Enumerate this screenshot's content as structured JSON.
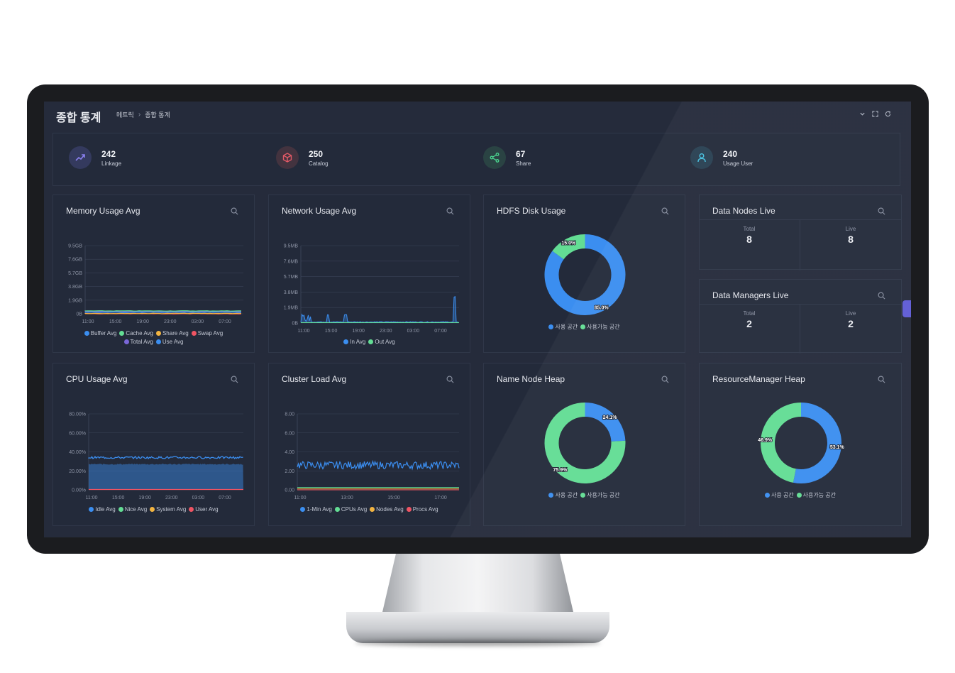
{
  "header": {
    "title": "종합 통계",
    "breadcrumb": [
      "메트릭",
      "종합 통계"
    ],
    "breadcrumb_sep": "›"
  },
  "stats": [
    {
      "value": "242",
      "label": "Linkage",
      "icon": "trend-up-icon",
      "color": "#6a62e8"
    },
    {
      "value": "250",
      "label": "Catalog",
      "icon": "cube-icon",
      "color": "#e0525f"
    },
    {
      "value": "67",
      "label": "Share",
      "icon": "share-icon",
      "color": "#3fcf86"
    },
    {
      "value": "240",
      "label": "Usage User",
      "icon": "user-icon",
      "color": "#39b8d8"
    }
  ],
  "panels": {
    "memory": {
      "title": "Memory Usage Avg"
    },
    "network": {
      "title": "Network Usage Avg"
    },
    "hdfs": {
      "title": "HDFS Disk Usage"
    },
    "data_nodes": {
      "title": "Data Nodes Live",
      "total_label": "Total",
      "total": "8",
      "live_label": "Live",
      "live": "8"
    },
    "data_managers": {
      "title": "Data Managers Live",
      "total_label": "Total",
      "total": "2",
      "live_label": "Live",
      "live": "2"
    },
    "cpu": {
      "title": "CPU Usage Avg"
    },
    "cluster": {
      "title": "Cluster Load Avg"
    },
    "namenode": {
      "title": "Name Node Heap"
    },
    "resourcemanager": {
      "title": "ResourceManager Heap"
    }
  },
  "colors": {
    "blue": "#3b8ef0",
    "green": "#63dd94",
    "orange": "#f2b441",
    "red": "#ef5463",
    "purple": "#7a67d8"
  },
  "chart_data": [
    {
      "id": "memory",
      "type": "line",
      "x": [
        "11:00",
        "15:00",
        "19:00",
        "23:00",
        "03:00",
        "07:00"
      ],
      "yticks": [
        "0B",
        "1.9GB",
        "3.8GB",
        "5.7GB",
        "7.6GB",
        "9.5GB"
      ],
      "ylim": [
        0,
        9.5
      ],
      "series": [
        {
          "name": "Buffer Avg",
          "color": "#3b8ef0",
          "level": 0.2
        },
        {
          "name": "Cache Avg",
          "color": "#63dd94",
          "level": 0.4
        },
        {
          "name": "Share Avg",
          "color": "#f2b441",
          "level": 0.05
        },
        {
          "name": "Swap Avg",
          "color": "#ef5463",
          "level": 0.0
        },
        {
          "name": "Total Avg",
          "color": "#7a67d8",
          "level": 0.3
        },
        {
          "name": "Use Avg",
          "color": "#3b8ef0",
          "level": 0.35
        }
      ]
    },
    {
      "id": "network",
      "type": "line",
      "x": [
        "11:00",
        "15:00",
        "19:00",
        "23:00",
        "03:00",
        "07:00"
      ],
      "yticks": [
        "0B",
        "1.9MB",
        "3.8MB",
        "5.7MB",
        "7.6MB",
        "9.5MB"
      ],
      "ylim": [
        0,
        9.5
      ],
      "series": [
        {
          "name": "In Avg",
          "color": "#3b8ef0"
        },
        {
          "name": "Out Avg",
          "color": "#63dd94"
        }
      ]
    },
    {
      "id": "hdfs",
      "type": "pie",
      "slices": [
        {
          "name": "사용 공간",
          "value": 85.0,
          "label": "85.0%",
          "color": "#3b8ef0"
        },
        {
          "name": "사용가능 공간",
          "value": 15.0,
          "label": "15.0%",
          "color": "#63dd94"
        }
      ]
    },
    {
      "id": "cpu",
      "type": "area",
      "x": [
        "11:00",
        "15:00",
        "19:00",
        "23:00",
        "03:00",
        "07:00"
      ],
      "yticks": [
        "0.00%",
        "20.00%",
        "40.00%",
        "60.00%",
        "80.00%"
      ],
      "ylim": [
        0,
        80
      ],
      "series": [
        {
          "name": "Idle Avg",
          "color": "#3b8ef0",
          "level": 34
        },
        {
          "name": "Nice Avg",
          "color": "#63dd94",
          "level": 0
        },
        {
          "name": "System Avg",
          "color": "#f2b441",
          "level": 0
        },
        {
          "name": "User Avg",
          "color": "#ef5463",
          "level": 0.5
        }
      ]
    },
    {
      "id": "cluster",
      "type": "line",
      "x": [
        "11:00",
        "13:00",
        "15:00",
        "17:00"
      ],
      "yticks": [
        "0.00",
        "2.00",
        "4.00",
        "6.00",
        "8.00"
      ],
      "ylim": [
        0,
        8
      ],
      "series": [
        {
          "name": "1-Min Avg",
          "color": "#3b8ef0",
          "level": 2.6
        },
        {
          "name": "CPUs Avg",
          "color": "#63dd94",
          "level": 0.25
        },
        {
          "name": "Nodes Avg",
          "color": "#f2b441",
          "level": 0.1
        },
        {
          "name": "Procs Avg",
          "color": "#ef5463",
          "level": 0.0
        }
      ]
    },
    {
      "id": "namenode",
      "type": "pie",
      "slices": [
        {
          "name": "사용 공간",
          "value": 24.1,
          "label": "24.1%",
          "color": "#3b8ef0"
        },
        {
          "name": "사용가능 공간",
          "value": 75.9,
          "label": "75.9%",
          "color": "#63dd94"
        }
      ]
    },
    {
      "id": "resourcemanager",
      "type": "pie",
      "slices": [
        {
          "name": "사용 공간",
          "value": 53.1,
          "label": "53.1%",
          "color": "#3b8ef0"
        },
        {
          "name": "사용가능 공간",
          "value": 46.9,
          "label": "46.9%",
          "color": "#63dd94"
        }
      ]
    }
  ]
}
